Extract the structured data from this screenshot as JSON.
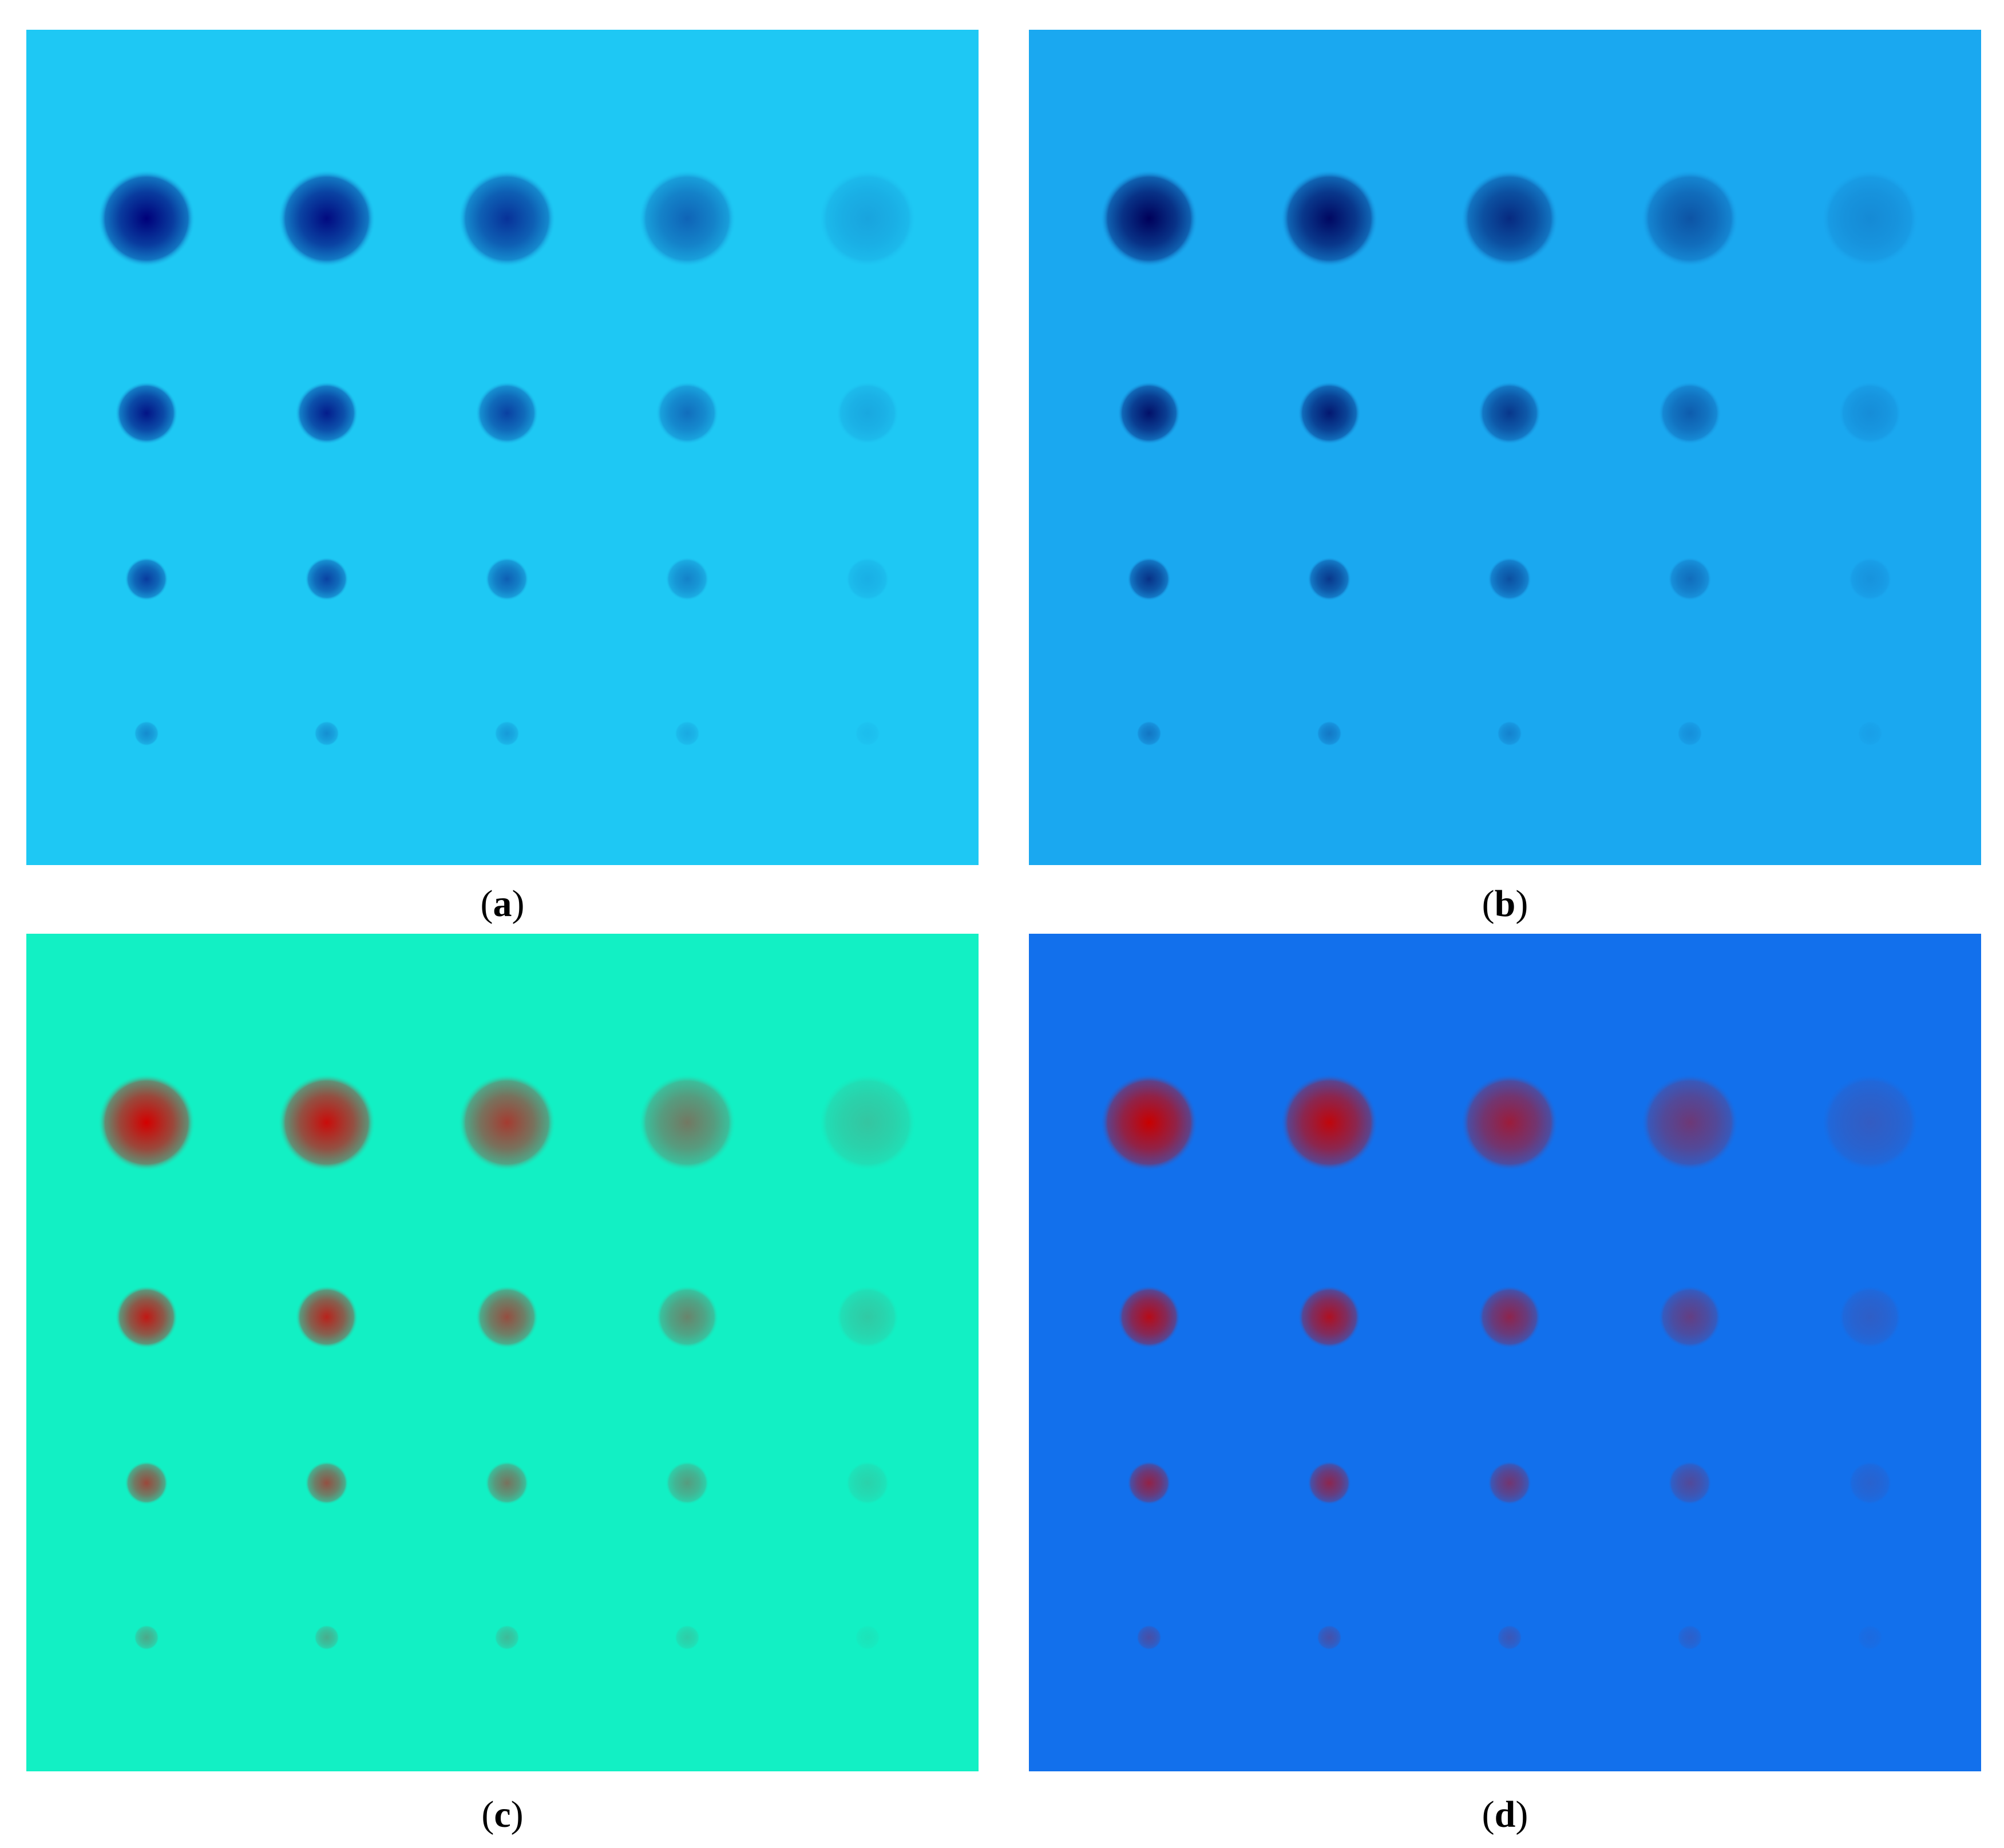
{
  "figure": {
    "panels": [
      {
        "id": "a",
        "label": "a",
        "background": "#1ec8f4",
        "spot_low": "#1ec8f4",
        "spot_high": "#00007a"
      },
      {
        "id": "b",
        "label": "b",
        "background": "#1aa8f0",
        "spot_low": "#1aa8f0",
        "spot_high": "#00005a"
      },
      {
        "id": "c",
        "label": "c",
        "background": "#12f0c4",
        "spot_low": "#12f0c4",
        "spot_high": "#d40000"
      },
      {
        "id": "d",
        "label": "d",
        "background": "#1270ec",
        "spot_low": "#1270ec",
        "spot_high": "#c80000"
      }
    ],
    "grid": {
      "rows": 4,
      "columns": 5
    }
  }
}
